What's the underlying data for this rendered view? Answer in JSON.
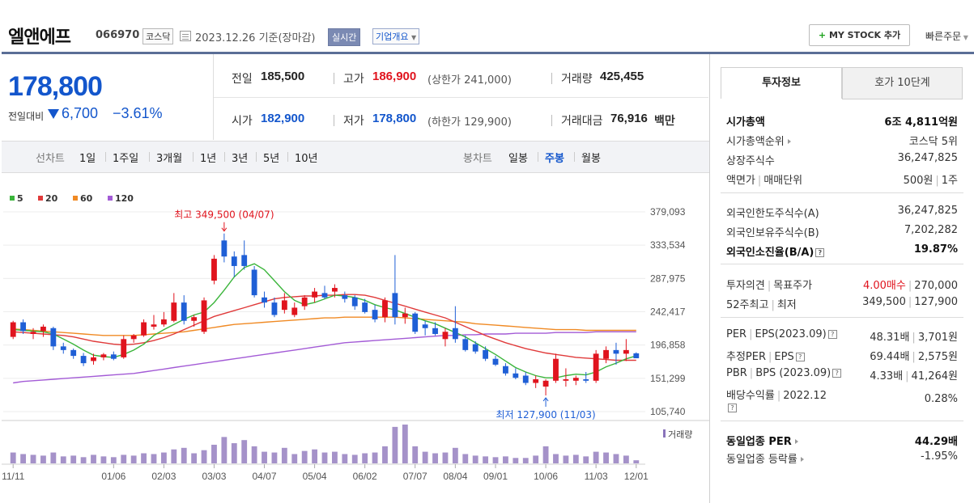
{
  "header": {
    "company_name": "엘앤에프",
    "code": "066970",
    "market": "코스닥",
    "date_text": "2023.12.26  기준(장마감)",
    "realtime_label": "실시간",
    "overview_label": "기업개요",
    "mystock_label": "MY STOCK 추가",
    "quick_order_label": "빠른주문"
  },
  "price": {
    "current": "178,800",
    "change_label": "전일대비",
    "change_value": "6,700",
    "change_pct": "−3.61%"
  },
  "stats": {
    "prev_label": "전일",
    "prev_value": "185,500",
    "high_label": "고가",
    "high_value": "186,900",
    "upper_limit": "(상한가 241,000)",
    "volume_label": "거래량",
    "volume_value": "425,455",
    "open_label": "시가",
    "open_value": "182,900",
    "low_label": "저가",
    "low_value": "178,800",
    "lower_limit": "(하한가 129,900)",
    "amount_label": "거래대금",
    "amount_value": "76,916",
    "amount_unit": "백만"
  },
  "period_tabs": {
    "line_label": "선차트",
    "line_items": [
      "1일",
      "1주일",
      "3개월",
      "1년",
      "3년",
      "5년",
      "10년"
    ],
    "candle_label": "봉차트",
    "candle_items": [
      "일봉",
      "주봉",
      "월봉"
    ],
    "selected": "주봉"
  },
  "chart_data": {
    "type": "candlestick",
    "legend": [
      {
        "name": "5",
        "color": "#3bb53b"
      },
      {
        "name": "20",
        "color": "#e03a3a"
      },
      {
        "name": "60",
        "color": "#f08a24"
      },
      {
        "name": "120",
        "color": "#a35bd6"
      }
    ],
    "y_ticks": [
      "379,093",
      "333,534",
      "287,975",
      "242,417",
      "196,858",
      "151,299",
      "105,740"
    ],
    "x_ticks": [
      "11/11",
      "01/06",
      "02/03",
      "03/03",
      "04/07",
      "05/04",
      "06/02",
      "07/07",
      "08/04",
      "09/01",
      "10/06",
      "11/03",
      "12/01"
    ],
    "ylim": [
      105740,
      379093
    ],
    "annotation_high": "최고 349,500 (04/07)",
    "annotation_low": "최저 127,900 (11/03)",
    "volume_label": "거래량",
    "candles": [
      {
        "o": 208000,
        "h": 230000,
        "l": 205000,
        "c": 228000
      },
      {
        "o": 228000,
        "h": 232000,
        "l": 212000,
        "c": 216000
      },
      {
        "o": 212000,
        "h": 220000,
        "l": 205000,
        "c": 215000
      },
      {
        "o": 216000,
        "h": 225000,
        "l": 208000,
        "c": 222000
      },
      {
        "o": 220000,
        "h": 222000,
        "l": 190000,
        "c": 195000
      },
      {
        "o": 195000,
        "h": 200000,
        "l": 185000,
        "c": 190000
      },
      {
        "o": 190000,
        "h": 192000,
        "l": 178000,
        "c": 182000
      },
      {
        "o": 182000,
        "h": 186000,
        "l": 168000,
        "c": 172000
      },
      {
        "o": 175000,
        "h": 185000,
        "l": 170000,
        "c": 180000
      },
      {
        "o": 180000,
        "h": 186000,
        "l": 176000,
        "c": 184000
      },
      {
        "o": 184000,
        "h": 188000,
        "l": 176000,
        "c": 178000
      },
      {
        "o": 180000,
        "h": 210000,
        "l": 178000,
        "c": 205000
      },
      {
        "o": 205000,
        "h": 212000,
        "l": 200000,
        "c": 210000
      },
      {
        "o": 210000,
        "h": 232000,
        "l": 208000,
        "c": 228000
      },
      {
        "o": 222000,
        "h": 238000,
        "l": 218000,
        "c": 225000
      },
      {
        "o": 225000,
        "h": 242000,
        "l": 222000,
        "c": 232000
      },
      {
        "o": 230000,
        "h": 268000,
        "l": 228000,
        "c": 255000
      },
      {
        "o": 255000,
        "h": 265000,
        "l": 225000,
        "c": 230000
      },
      {
        "o": 230000,
        "h": 238000,
        "l": 222000,
        "c": 235000
      },
      {
        "o": 215000,
        "h": 262000,
        "l": 212000,
        "c": 258000
      },
      {
        "o": 285000,
        "h": 320000,
        "l": 280000,
        "c": 315000
      },
      {
        "o": 340000,
        "h": 349500,
        "l": 310000,
        "c": 318000
      },
      {
        "o": 318000,
        "h": 325000,
        "l": 290000,
        "c": 305000
      },
      {
        "o": 320000,
        "h": 340000,
        "l": 300000,
        "c": 305000
      },
      {
        "o": 300000,
        "h": 305000,
        "l": 262000,
        "c": 265000
      },
      {
        "o": 262000,
        "h": 270000,
        "l": 248000,
        "c": 255000
      },
      {
        "o": 255000,
        "h": 262000,
        "l": 235000,
        "c": 238000
      },
      {
        "o": 245000,
        "h": 268000,
        "l": 240000,
        "c": 258000
      },
      {
        "o": 238000,
        "h": 255000,
        "l": 235000,
        "c": 248000
      },
      {
        "o": 250000,
        "h": 265000,
        "l": 245000,
        "c": 262000
      },
      {
        "o": 262000,
        "h": 275000,
        "l": 255000,
        "c": 270000
      },
      {
        "o": 268000,
        "h": 278000,
        "l": 260000,
        "c": 262000
      },
      {
        "o": 270000,
        "h": 280000,
        "l": 262000,
        "c": 275000
      },
      {
        "o": 265000,
        "h": 270000,
        "l": 255000,
        "c": 260000
      },
      {
        "o": 262000,
        "h": 265000,
        "l": 245000,
        "c": 250000
      },
      {
        "o": 255000,
        "h": 260000,
        "l": 240000,
        "c": 242000
      },
      {
        "o": 245000,
        "h": 252000,
        "l": 228000,
        "c": 232000
      },
      {
        "o": 235000,
        "h": 262000,
        "l": 228000,
        "c": 258000
      },
      {
        "o": 268000,
        "h": 320000,
        "l": 225000,
        "c": 235000
      },
      {
        "o": 235000,
        "h": 248000,
        "l": 226000,
        "c": 240000
      },
      {
        "o": 240000,
        "h": 242000,
        "l": 212000,
        "c": 215000
      },
      {
        "o": 225000,
        "h": 230000,
        "l": 210000,
        "c": 220000
      },
      {
        "o": 220000,
        "h": 228000,
        "l": 210000,
        "c": 212000
      },
      {
        "o": 205000,
        "h": 220000,
        "l": 195000,
        "c": 215000
      },
      {
        "o": 220000,
        "h": 250000,
        "l": 200000,
        "c": 205000
      },
      {
        "o": 205000,
        "h": 210000,
        "l": 188000,
        "c": 190000
      },
      {
        "o": 198000,
        "h": 202000,
        "l": 185000,
        "c": 188000
      },
      {
        "o": 190000,
        "h": 195000,
        "l": 175000,
        "c": 178000
      },
      {
        "o": 178000,
        "h": 182000,
        "l": 168000,
        "c": 170000
      },
      {
        "o": 168000,
        "h": 172000,
        "l": 155000,
        "c": 158000
      },
      {
        "o": 158000,
        "h": 165000,
        "l": 150000,
        "c": 152000
      },
      {
        "o": 155000,
        "h": 160000,
        "l": 142000,
        "c": 145000
      },
      {
        "o": 145000,
        "h": 155000,
        "l": 138000,
        "c": 150000
      },
      {
        "o": 140000,
        "h": 150000,
        "l": 127900,
        "c": 148000
      },
      {
        "o": 148000,
        "h": 185000,
        "l": 145000,
        "c": 178000
      },
      {
        "o": 148000,
        "h": 165000,
        "l": 140000,
        "c": 150000
      },
      {
        "o": 148000,
        "h": 155000,
        "l": 142000,
        "c": 152000
      },
      {
        "o": 150000,
        "h": 160000,
        "l": 145000,
        "c": 148000
      },
      {
        "o": 148000,
        "h": 190000,
        "l": 145000,
        "c": 185000
      },
      {
        "o": 178000,
        "h": 195000,
        "l": 172000,
        "c": 190000
      },
      {
        "o": 190000,
        "h": 200000,
        "l": 170000,
        "c": 185000
      },
      {
        "o": 185000,
        "h": 205000,
        "l": 175000,
        "c": 190000
      },
      {
        "o": 185500,
        "h": 186900,
        "l": 178800,
        "c": 178800
      }
    ],
    "ma5": [
      218000,
      217000,
      216000,
      215000,
      212000,
      205000,
      198000,
      190000,
      183000,
      181000,
      180000,
      184000,
      190000,
      198000,
      210000,
      218000,
      225000,
      232000,
      238000,
      242000,
      255000,
      272000,
      290000,
      303000,
      308000,
      300000,
      285000,
      270000,
      258000,
      252000,
      255000,
      260000,
      265000,
      264000,
      262000,
      258000,
      252000,
      248000,
      245000,
      240000,
      235000,
      230000,
      226000,
      220000,
      214000,
      208000,
      200000,
      192000,
      184000,
      175000,
      166000,
      160000,
      155000,
      152000,
      152000,
      155000,
      157000,
      156000,
      160000,
      167000,
      172000,
      178000,
      182000
    ],
    "ma20": [
      215000,
      214000,
      213000,
      212000,
      211000,
      210000,
      208000,
      205000,
      202000,
      200000,
      198000,
      197000,
      198000,
      200000,
      203000,
      207000,
      212000,
      218000,
      224000,
      230000,
      236000,
      240000,
      244000,
      248000,
      252000,
      256000,
      260000,
      262000,
      263000,
      264000,
      264000,
      265000,
      265000,
      266000,
      266000,
      265000,
      262000,
      258000,
      254000,
      250000,
      246000,
      242000,
      238000,
      234000,
      228000,
      222000,
      216000,
      210000,
      205000,
      200000,
      196000,
      192000,
      189000,
      186000,
      184000,
      182000,
      180000,
      179000,
      178000,
      177000,
      176000,
      176000,
      176000
    ],
    "ma60": [
      219000,
      218000,
      217000,
      216000,
      215000,
      214000,
      213000,
      212000,
      211000,
      210000,
      210000,
      210000,
      210000,
      211000,
      212000,
      213000,
      214000,
      215000,
      217000,
      219000,
      221000,
      223000,
      225000,
      226000,
      227000,
      228000,
      229000,
      230000,
      231000,
      232000,
      233000,
      234000,
      234000,
      235000,
      235000,
      235000,
      235000,
      235000,
      235000,
      234000,
      233000,
      232000,
      231000,
      230000,
      229000,
      228000,
      226000,
      225000,
      224000,
      223000,
      222000,
      221000,
      220000,
      219000,
      218000,
      218000,
      218000,
      217000,
      217000,
      217000,
      217000,
      217000,
      217000
    ],
    "ma120": [
      145000,
      147000,
      148000,
      149000,
      150000,
      151000,
      152000,
      153000,
      154000,
      155000,
      156000,
      157000,
      158000,
      160000,
      162000,
      164000,
      166000,
      168000,
      170000,
      172000,
      174000,
      176000,
      178000,
      180000,
      182000,
      184000,
      186000,
      188000,
      190000,
      192000,
      194000,
      196000,
      198000,
      200000,
      201000,
      202000,
      203000,
      204000,
      205000,
      206000,
      207000,
      208000,
      209000,
      210000,
      210000,
      211000,
      211000,
      212000,
      212000,
      212000,
      213000,
      213000,
      213000,
      213000,
      214000,
      214000,
      214000,
      214000,
      215000,
      215000,
      215000,
      215000,
      215000
    ],
    "volumes": [
      14,
      12,
      11,
      10,
      14,
      9,
      10,
      8,
      11,
      9,
      8,
      11,
      10,
      13,
      12,
      14,
      18,
      20,
      13,
      17,
      24,
      34,
      26,
      30,
      22,
      15,
      14,
      20,
      12,
      16,
      18,
      14,
      15,
      12,
      11,
      13,
      14,
      22,
      47,
      50,
      22,
      15,
      13,
      14,
      20,
      12,
      10,
      9,
      8,
      9,
      7,
      7,
      10,
      22,
      12,
      10,
      11,
      9,
      15,
      14,
      12,
      10,
      4
    ]
  },
  "panel": {
    "tab_invest": "투자정보",
    "tab_hoga": "호가 10단계",
    "market_cap_label": "시가총액",
    "market_cap_value": "6조 4,811억원",
    "cap_rank_label": "시가총액순위",
    "cap_rank_value": "코스닥 5위",
    "shares_label": "상장주식수",
    "shares_value": "36,247,825",
    "par_label": "액면가",
    "unit_label": "매매단위",
    "par_value": "500원",
    "unit_value": "1주",
    "foreign_limit_label": "외국인한도주식수(A)",
    "foreign_limit_value": "36,247,825",
    "foreign_hold_label": "외국인보유주식수(B)",
    "foreign_hold_value": "7,202,282",
    "foreign_ratio_label": "외국인소진율(B/A)",
    "foreign_ratio_value": "19.87%",
    "opinion_label": "투자의견",
    "target_label": "목표주가",
    "opinion_value": "4.00매수",
    "target_value": "270,000",
    "week52_high_label": "52주최고",
    "week52_low_label": "최저",
    "week52_high_value": "349,500",
    "week52_low_value": "127,900",
    "per_label": "PER",
    "eps_label": "EPS(2023.09)",
    "per_value": "48.31배",
    "eps_value": "3,701원",
    "est_per_label": "추정PER",
    "est_eps_label": "EPS",
    "est_per_value": "69.44배",
    "est_eps_value": "2,575원",
    "pbr_label": "PBR",
    "bps_label": "BPS (2023.09)",
    "pbr_value": "4.33배",
    "bps_value": "41,264원",
    "div_label": "배당수익률",
    "div_period": "2022.12",
    "div_value": "0.28%",
    "sector_per_label": "동일업종 PER",
    "sector_per_value": "44.29배",
    "sector_chg_label": "동일업종 등락률",
    "sector_chg_value": "-1.95%"
  }
}
